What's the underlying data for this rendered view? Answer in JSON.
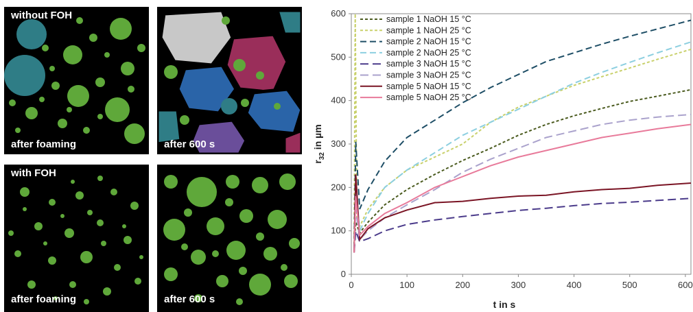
{
  "panels": [
    {
      "top_label": "without FOH",
      "bottom_label": "after foaming"
    },
    {
      "top_label": "",
      "bottom_label": "after 600 s"
    },
    {
      "top_label": "with FOH",
      "bottom_label": "after foaming"
    },
    {
      "top_label": "",
      "bottom_label": "after 600 s"
    }
  ],
  "colors": {
    "bubble_green": "#5fa83a",
    "bubble_border": "#000000",
    "teal": "#2f7d86",
    "blue": "#2a64a8",
    "magenta": "#9a2e5a",
    "grey": "#c8c8c8",
    "purple": "#6a4e9a"
  },
  "chart_data": {
    "type": "line",
    "xlabel": "t in s",
    "ylabel": "r32 in µm",
    "ylabel_main": "r",
    "ylabel_sub": "32",
    "ylabel_rest": " in µm",
    "xlim": [
      0,
      610
    ],
    "ylim": [
      0,
      600
    ],
    "xticks": [
      0,
      100,
      200,
      300,
      400,
      500,
      600
    ],
    "yticks": [
      0,
      100,
      200,
      300,
      400,
      500,
      600
    ],
    "grid": false,
    "legend_position": "top-left",
    "series": [
      {
        "name": "sample 1 NaOH 15 °C",
        "color": "#4a5a1e",
        "dash": "4,3",
        "x": [
          5,
          8,
          15,
          30,
          60,
          100,
          150,
          200,
          250,
          300,
          350,
          400,
          450,
          500,
          550,
          610
        ],
        "y": [
          55,
          120,
          95,
          120,
          160,
          195,
          230,
          262,
          290,
          320,
          345,
          365,
          382,
          398,
          410,
          425
        ]
      },
      {
        "name": "sample 1 NaOH 25 °C",
        "color": "#c8d06a",
        "dash": "4,3",
        "x": [
          5,
          7,
          10,
          15,
          30,
          60,
          100,
          150,
          200,
          250,
          300,
          350,
          400,
          450,
          500,
          550,
          610
        ],
        "y": [
          60,
          600,
          130,
          110,
          150,
          200,
          240,
          270,
          300,
          350,
          385,
          410,
          435,
          455,
          475,
          495,
          518
        ]
      },
      {
        "name": "sample 2 NaOH 15 °C",
        "color": "#1e4e66",
        "dash": "9,5",
        "x": [
          5,
          8,
          15,
          30,
          60,
          100,
          150,
          200,
          250,
          300,
          350,
          400,
          450,
          500,
          550,
          610
        ],
        "y": [
          60,
          305,
          150,
          195,
          260,
          315,
          355,
          395,
          430,
          460,
          490,
          510,
          530,
          548,
          565,
          585
        ]
      },
      {
        "name": "sample 2 NaOH 25 °C",
        "color": "#8ccfe0",
        "dash": "9,5",
        "x": [
          5,
          8,
          15,
          30,
          60,
          100,
          150,
          200,
          250,
          300,
          350,
          400,
          450,
          500,
          550,
          610
        ],
        "y": [
          55,
          210,
          100,
          140,
          200,
          240,
          280,
          320,
          350,
          380,
          410,
          440,
          465,
          488,
          510,
          535
        ]
      },
      {
        "name": "sample 3 NaOH 15 °C",
        "color": "#4a3a8a",
        "dash": "12,6",
        "x": [
          5,
          8,
          15,
          30,
          60,
          100,
          150,
          200,
          250,
          300,
          350,
          400,
          450,
          500,
          550,
          610
        ],
        "y": [
          50,
          100,
          75,
          82,
          100,
          115,
          125,
          133,
          140,
          147,
          152,
          158,
          163,
          166,
          170,
          175
        ]
      },
      {
        "name": "sample 3 NaOH 25 °C",
        "color": "#aaa2cc",
        "dash": "12,6",
        "x": [
          5,
          8,
          15,
          30,
          60,
          100,
          150,
          200,
          250,
          300,
          350,
          400,
          450,
          500,
          550,
          610
        ],
        "y": [
          55,
          150,
          80,
          100,
          130,
          160,
          195,
          235,
          265,
          290,
          315,
          330,
          345,
          355,
          362,
          368
        ]
      },
      {
        "name": "sample 5 NaOH 15 °C",
        "color": "#7a1424",
        "dash": "",
        "x": [
          5,
          8,
          15,
          30,
          60,
          100,
          150,
          200,
          250,
          300,
          350,
          400,
          450,
          500,
          550,
          610
        ],
        "y": [
          50,
          230,
          80,
          105,
          130,
          148,
          165,
          168,
          175,
          180,
          182,
          190,
          195,
          198,
          205,
          210
        ]
      },
      {
        "name": "sample 5 NaOH 25 °C",
        "color": "#e87a9a",
        "dash": "",
        "x": [
          5,
          8,
          15,
          30,
          60,
          100,
          150,
          200,
          250,
          300,
          350,
          400,
          450,
          500,
          550,
          610
        ],
        "y": [
          50,
          180,
          90,
          110,
          140,
          165,
          200,
          225,
          250,
          270,
          285,
          300,
          315,
          325,
          335,
          345
        ]
      }
    ]
  }
}
